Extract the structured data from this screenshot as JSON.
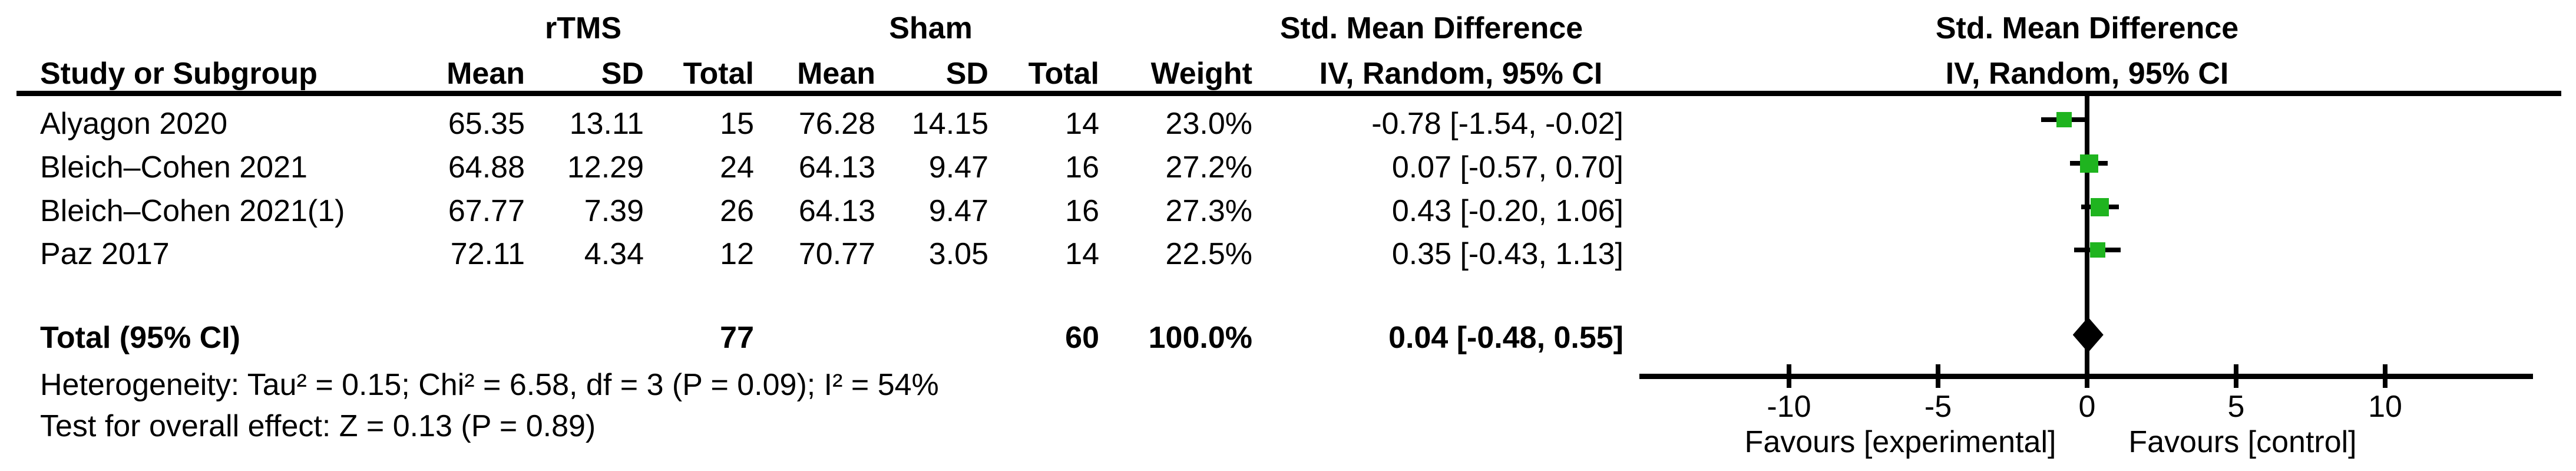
{
  "header": {
    "group1": "rTMS",
    "group2": "Sham",
    "effect": "Std. Mean Difference",
    "effect_method": "IV, Random, 95% CI",
    "col_study": "Study or Subgroup",
    "col_mean": "Mean",
    "col_sd": "SD",
    "col_total": "Total",
    "col_weight": "Weight",
    "plot_title": "Std. Mean Difference",
    "plot_method": "IV, Random, 95% CI"
  },
  "rows": [
    {
      "study": "Alyagon 2020",
      "mean1": "65.35",
      "sd1": "13.11",
      "total1": "15",
      "mean2": "76.28",
      "sd2": "14.15",
      "total2": "14",
      "weight": "23.0%",
      "ci": "-0.78 [-1.54, -0.02]"
    },
    {
      "study": "Bleich–Cohen 2021",
      "mean1": "64.88",
      "sd1": "12.29",
      "total1": "24",
      "mean2": "64.13",
      "sd2": "9.47",
      "total2": "16",
      "weight": "27.2%",
      "ci": "0.07 [-0.57, 0.70]"
    },
    {
      "study": "Bleich–Cohen 2021(1)",
      "mean1": "67.77",
      "sd1": "7.39",
      "total1": "26",
      "mean2": "64.13",
      "sd2": "9.47",
      "total2": "16",
      "weight": "27.3%",
      "ci": "0.43 [-0.20, 1.06]"
    },
    {
      "study": "Paz 2017",
      "mean1": "72.11",
      "sd1": "4.34",
      "total1": "12",
      "mean2": "70.77",
      "sd2": "3.05",
      "total2": "14",
      "weight": "22.5%",
      "ci": "0.35 [-0.43, 1.13]"
    }
  ],
  "total_row": {
    "label": "Total (95% CI)",
    "total1": "77",
    "total2": "60",
    "weight": "100.0%",
    "ci": "0.04 [-0.48, 0.55]"
  },
  "footnotes": {
    "heterogeneity": "Heterogeneity: Tau² = 0.15; Chi² = 6.58, df = 3 (P = 0.09); I² = 54%",
    "overall_effect": "Test for overall effect: Z = 0.13 (P = 0.89)"
  },
  "plot": {
    "tick_labels": [
      "-10",
      "-5",
      "0",
      "5",
      "10"
    ],
    "favours_left": "Favours [experimental]",
    "favours_right": "Favours [control]",
    "marker_color": "#1fb41f",
    "line_color": "#000000"
  },
  "chart_data": {
    "type": "scatter",
    "subtype": "forest-plot",
    "title": "Std. Mean Difference — IV, Random, 95% CI",
    "x_ticks": [
      -10,
      -5,
      0,
      5,
      10
    ],
    "xlim": [
      -15,
      15
    ],
    "xlabel_left": "Favours [experimental]",
    "xlabel_right": "Favours [control]",
    "studies": [
      {
        "name": "Alyagon 2020",
        "mean_rtms": 65.35,
        "sd_rtms": 13.11,
        "n_rtms": 15,
        "mean_sham": 76.28,
        "sd_sham": 14.15,
        "n_sham": 14,
        "weight_pct": 23.0,
        "smd": -0.78,
        "ci_low": -1.54,
        "ci_high": -0.02
      },
      {
        "name": "Bleich–Cohen 2021",
        "mean_rtms": 64.88,
        "sd_rtms": 12.29,
        "n_rtms": 24,
        "mean_sham": 64.13,
        "sd_sham": 9.47,
        "n_sham": 16,
        "weight_pct": 27.2,
        "smd": 0.07,
        "ci_low": -0.57,
        "ci_high": 0.7
      },
      {
        "name": "Bleich–Cohen 2021(1)",
        "mean_rtms": 67.77,
        "sd_rtms": 7.39,
        "n_rtms": 26,
        "mean_sham": 64.13,
        "sd_sham": 9.47,
        "n_sham": 16,
        "weight_pct": 27.3,
        "smd": 0.43,
        "ci_low": -0.2,
        "ci_high": 1.06
      },
      {
        "name": "Paz 2017",
        "mean_rtms": 72.11,
        "sd_rtms": 4.34,
        "n_rtms": 12,
        "mean_sham": 70.77,
        "sd_sham": 3.05,
        "n_sham": 14,
        "weight_pct": 22.5,
        "smd": 0.35,
        "ci_low": -0.43,
        "ci_high": 1.13
      }
    ],
    "overall": {
      "label": "Total (95% CI)",
      "n_rtms": 77,
      "n_sham": 60,
      "weight_pct": 100.0,
      "smd": 0.04,
      "ci_low": -0.48,
      "ci_high": 0.55
    },
    "heterogeneity": {
      "tau2": 0.15,
      "chi2": 6.58,
      "df": 3,
      "p": 0.09,
      "i2_pct": 54
    },
    "overall_effect_test": {
      "z": 0.13,
      "p": 0.89
    }
  }
}
